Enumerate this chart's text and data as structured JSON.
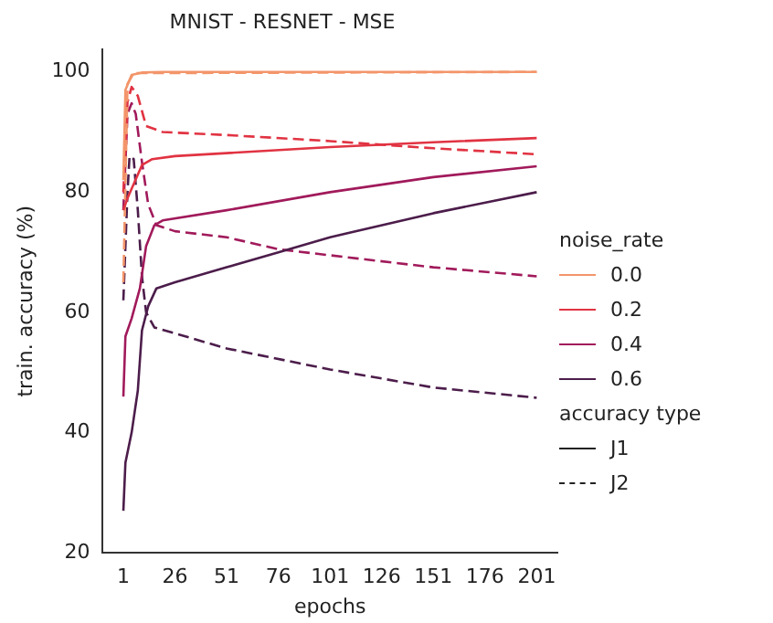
{
  "chart_data": {
    "type": "line",
    "title": "MNIST - RESNET - MSE",
    "xlabel": "epochs",
    "ylabel": "train. accuracy (%)",
    "legend_title": "noise_rate",
    "legend": "right",
    "grid": false,
    "marker": "none",
    "annotations": [
      "accuracy type",
      "J1",
      "J2"
    ],
    "xlim": [
      -9,
      211
    ],
    "xticks": [
      1,
      26,
      51,
      76,
      101,
      126,
      151,
      176,
      201
    ],
    "ylim": [
      20,
      103.7
    ],
    "yticks": [
      20,
      40,
      60,
      80,
      100
    ],
    "series": [
      {
        "name": "0.0",
        "color": "#f3956a",
        "line_style": "solid",
        "x": [
          1,
          2,
          5,
          10,
          20,
          201
        ],
        "values": [
          82,
          97,
          99.5,
          99.9,
          100,
          100
        ]
      },
      {
        "name": "0.2",
        "color": "#e13342",
        "line_style": "solid",
        "x": [
          1,
          3,
          10,
          15,
          26,
          51,
          101,
          151,
          201
        ],
        "values": [
          77,
          79,
          84.5,
          85.5,
          86,
          86.5,
          87.5,
          88.3,
          89
        ]
      },
      {
        "name": "0.4",
        "color": "#a11a5b",
        "line_style": "solid",
        "x": [
          1,
          2,
          5,
          9,
          12,
          16,
          20,
          51,
          101,
          151,
          201
        ],
        "values": [
          46,
          56,
          59,
          64,
          71,
          74.5,
          75.3,
          77,
          80,
          82.5,
          84.3
        ]
      },
      {
        "name": "0.6",
        "color": "#4c1d4b",
        "line_style": "solid",
        "x": [
          1,
          2,
          5,
          8,
          10,
          13,
          17,
          26,
          51,
          76,
          101,
          151,
          201
        ],
        "values": [
          27,
          35,
          40,
          47,
          57,
          61,
          64,
          65,
          67.5,
          70,
          72.5,
          76.5,
          80
        ]
      },
      {
        "color": "#f3956a",
        "line_style": "dashed",
        "x": [
          1,
          3,
          6,
          201
        ],
        "values": [
          65,
          98,
          99.8,
          100
        ]
      },
      {
        "color": "#e13342",
        "line_style": "dashed",
        "x": [
          1,
          3,
          5,
          8,
          12,
          20,
          51,
          101,
          151,
          201
        ],
        "values": [
          80,
          95,
          97.5,
          96,
          91,
          90,
          89.5,
          88.5,
          87.3,
          86.3
        ]
      },
      {
        "color": "#a11a5b",
        "line_style": "dashed",
        "x": [
          1,
          3,
          5,
          7,
          10,
          13,
          17,
          26,
          51,
          76,
          101,
          151,
          201
        ],
        "values": [
          77,
          93,
          94.8,
          93,
          85,
          78,
          74.5,
          73.5,
          72.5,
          70.5,
          69.5,
          67.5,
          66
        ]
      },
      {
        "color": "#4c1d4b",
        "line_style": "dashed",
        "x": [
          1,
          3,
          4,
          6,
          8,
          10,
          12,
          16,
          26,
          51,
          101,
          151,
          201
        ],
        "values": [
          62,
          80,
          86,
          85.5,
          77,
          66,
          60,
          57.5,
          56.5,
          54,
          50.5,
          47.5,
          45.8
        ]
      }
    ]
  }
}
